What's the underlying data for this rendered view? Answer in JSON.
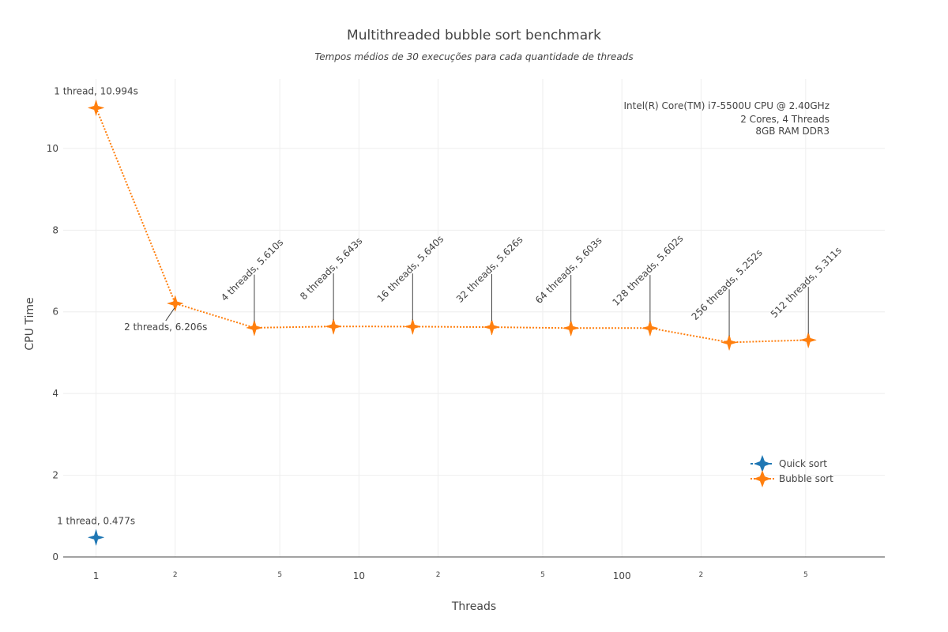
{
  "chart_data": {
    "type": "scatter",
    "title": "Multithreaded bubble sort benchmark",
    "subtitle": "Tempos médios de 30 execuções para cada quantidade de threads",
    "xlabel": "Threads",
    "ylabel": "CPU Time",
    "x_scale": "log",
    "xlim": [
      0.75,
      1000
    ],
    "ylim": [
      0,
      11.7
    ],
    "y_ticks": [
      0,
      2,
      4,
      6,
      8,
      10
    ],
    "x_ticks_major": [
      {
        "value": 1,
        "label": "1"
      },
      {
        "value": 10,
        "label": "10"
      },
      {
        "value": 100,
        "label": "100"
      }
    ],
    "x_ticks_minor": [
      {
        "value": 2,
        "label": "2"
      },
      {
        "value": 5,
        "label": "5"
      },
      {
        "value": 20,
        "label": "2"
      },
      {
        "value": 50,
        "label": "5"
      },
      {
        "value": 200,
        "label": "2"
      },
      {
        "value": 500,
        "label": "5"
      }
    ],
    "grid": true,
    "legend_position": "bottom-right",
    "series": [
      {
        "name": "Quick sort",
        "color": "#1f77b4",
        "line": "dashed",
        "marker": "star-4",
        "x": [
          1
        ],
        "y": [
          0.477
        ]
      },
      {
        "name": "Bubble sort",
        "color": "#ff7f0e",
        "line": "dotted",
        "marker": "star-4",
        "x": [
          1,
          2,
          4,
          8,
          16,
          32,
          64,
          128,
          256,
          512
        ],
        "y": [
          10.994,
          6.206,
          5.61,
          5.643,
          5.64,
          5.626,
          5.603,
          5.602,
          5.252,
          5.311
        ]
      }
    ],
    "annotations": [
      {
        "series": "Quick sort",
        "x": 1,
        "y": 0.477,
        "text": "1 thread, 0.477s",
        "style": "above"
      },
      {
        "series": "Bubble sort",
        "x": 1,
        "y": 10.994,
        "text": "1 thread, 10.994s",
        "style": "above"
      },
      {
        "series": "Bubble sort",
        "x": 2,
        "y": 6.206,
        "text": "2 threads, 6.206s",
        "style": "arrow-below"
      },
      {
        "series": "Bubble sort",
        "x": 4,
        "y": 5.61,
        "text": "4 threads, 5.610s",
        "style": "rotated"
      },
      {
        "series": "Bubble sort",
        "x": 8,
        "y": 5.643,
        "text": "8 threads, 5.643s",
        "style": "rotated"
      },
      {
        "series": "Bubble sort",
        "x": 16,
        "y": 5.64,
        "text": "16 threads, 5.640s",
        "style": "rotated"
      },
      {
        "series": "Bubble sort",
        "x": 32,
        "y": 5.626,
        "text": "32 threads, 5.626s",
        "style": "rotated"
      },
      {
        "series": "Bubble sort",
        "x": 64,
        "y": 5.603,
        "text": "64 threads, 5.603s",
        "style": "rotated"
      },
      {
        "series": "Bubble sort",
        "x": 128,
        "y": 5.602,
        "text": "128 threads, 5.602s",
        "style": "rotated"
      },
      {
        "series": "Bubble sort",
        "x": 256,
        "y": 5.252,
        "text": "256 threads, 5.252s",
        "style": "rotated"
      },
      {
        "series": "Bubble sort",
        "x": 512,
        "y": 5.311,
        "text": "512 threads, 5.311s",
        "style": "rotated"
      }
    ],
    "info_box": [
      "Intel(R) Core(TM) i7-5500U CPU @ 2.40GHz",
      "2 Cores, 4 Threads",
      "8GB RAM DDR3"
    ]
  }
}
